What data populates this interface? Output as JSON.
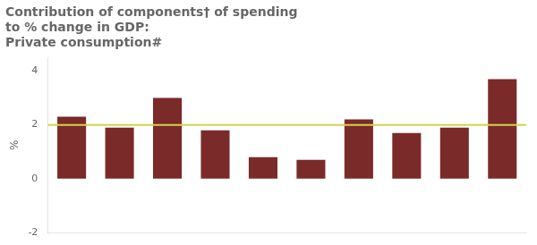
{
  "chart_data": {
    "type": "bar",
    "title": "Contribution of components† of spending\nto % change in GDP:\nPrivate consumption#",
    "ylabel": "%",
    "categories": [
      null,
      null,
      null,
      null,
      null,
      null,
      null,
      null,
      null,
      null
    ],
    "values": [
      2.3,
      1.9,
      3.0,
      1.8,
      0.8,
      0.7,
      2.2,
      1.7,
      1.9,
      3.7
    ],
    "color": "#7B2A2A",
    "ylim": [
      -2,
      4.5
    ],
    "yticks": [
      -2,
      0,
      2,
      4
    ],
    "reference_line": {
      "value": 2.0,
      "color": "#D4D44A"
    },
    "grid": false,
    "tick_labels": "y"
  }
}
